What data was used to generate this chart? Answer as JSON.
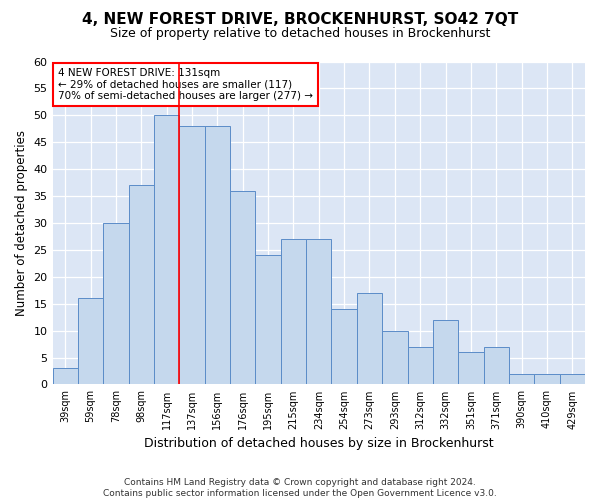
{
  "title": "4, NEW FOREST DRIVE, BROCKENHURST, SO42 7QT",
  "subtitle": "Size of property relative to detached houses in Brockenhurst",
  "xlabel": "Distribution of detached houses by size in Brockenhurst",
  "ylabel": "Number of detached properties",
  "categories": [
    "39sqm",
    "59sqm",
    "78sqm",
    "98sqm",
    "117sqm",
    "137sqm",
    "156sqm",
    "176sqm",
    "195sqm",
    "215sqm",
    "234sqm",
    "254sqm",
    "273sqm",
    "293sqm",
    "312sqm",
    "332sqm",
    "351sqm",
    "371sqm",
    "390sqm",
    "410sqm",
    "429sqm"
  ],
  "values": [
    3,
    16,
    30,
    37,
    50,
    48,
    48,
    36,
    24,
    27,
    27,
    14,
    17,
    10,
    7,
    12,
    6,
    7,
    2,
    2,
    2
  ],
  "bar_color": "#c5d8ed",
  "bar_edge_color": "#5b8cc8",
  "ylim": [
    0,
    60
  ],
  "yticks": [
    0,
    5,
    10,
    15,
    20,
    25,
    30,
    35,
    40,
    45,
    50,
    55,
    60
  ],
  "vline_x": 4.5,
  "annotation_title": "4 NEW FOREST DRIVE: 131sqm",
  "annotation_line1": "← 29% of detached houses are smaller (117)",
  "annotation_line2": "70% of semi-detached houses are larger (277) →",
  "annotation_box_color": "white",
  "annotation_box_edge_color": "red",
  "vline_color": "red",
  "footer1": "Contains HM Land Registry data © Crown copyright and database right 2024.",
  "footer2": "Contains public sector information licensed under the Open Government Licence v3.0.",
  "background_color": "#ffffff",
  "plot_bg_color": "#dce6f5"
}
